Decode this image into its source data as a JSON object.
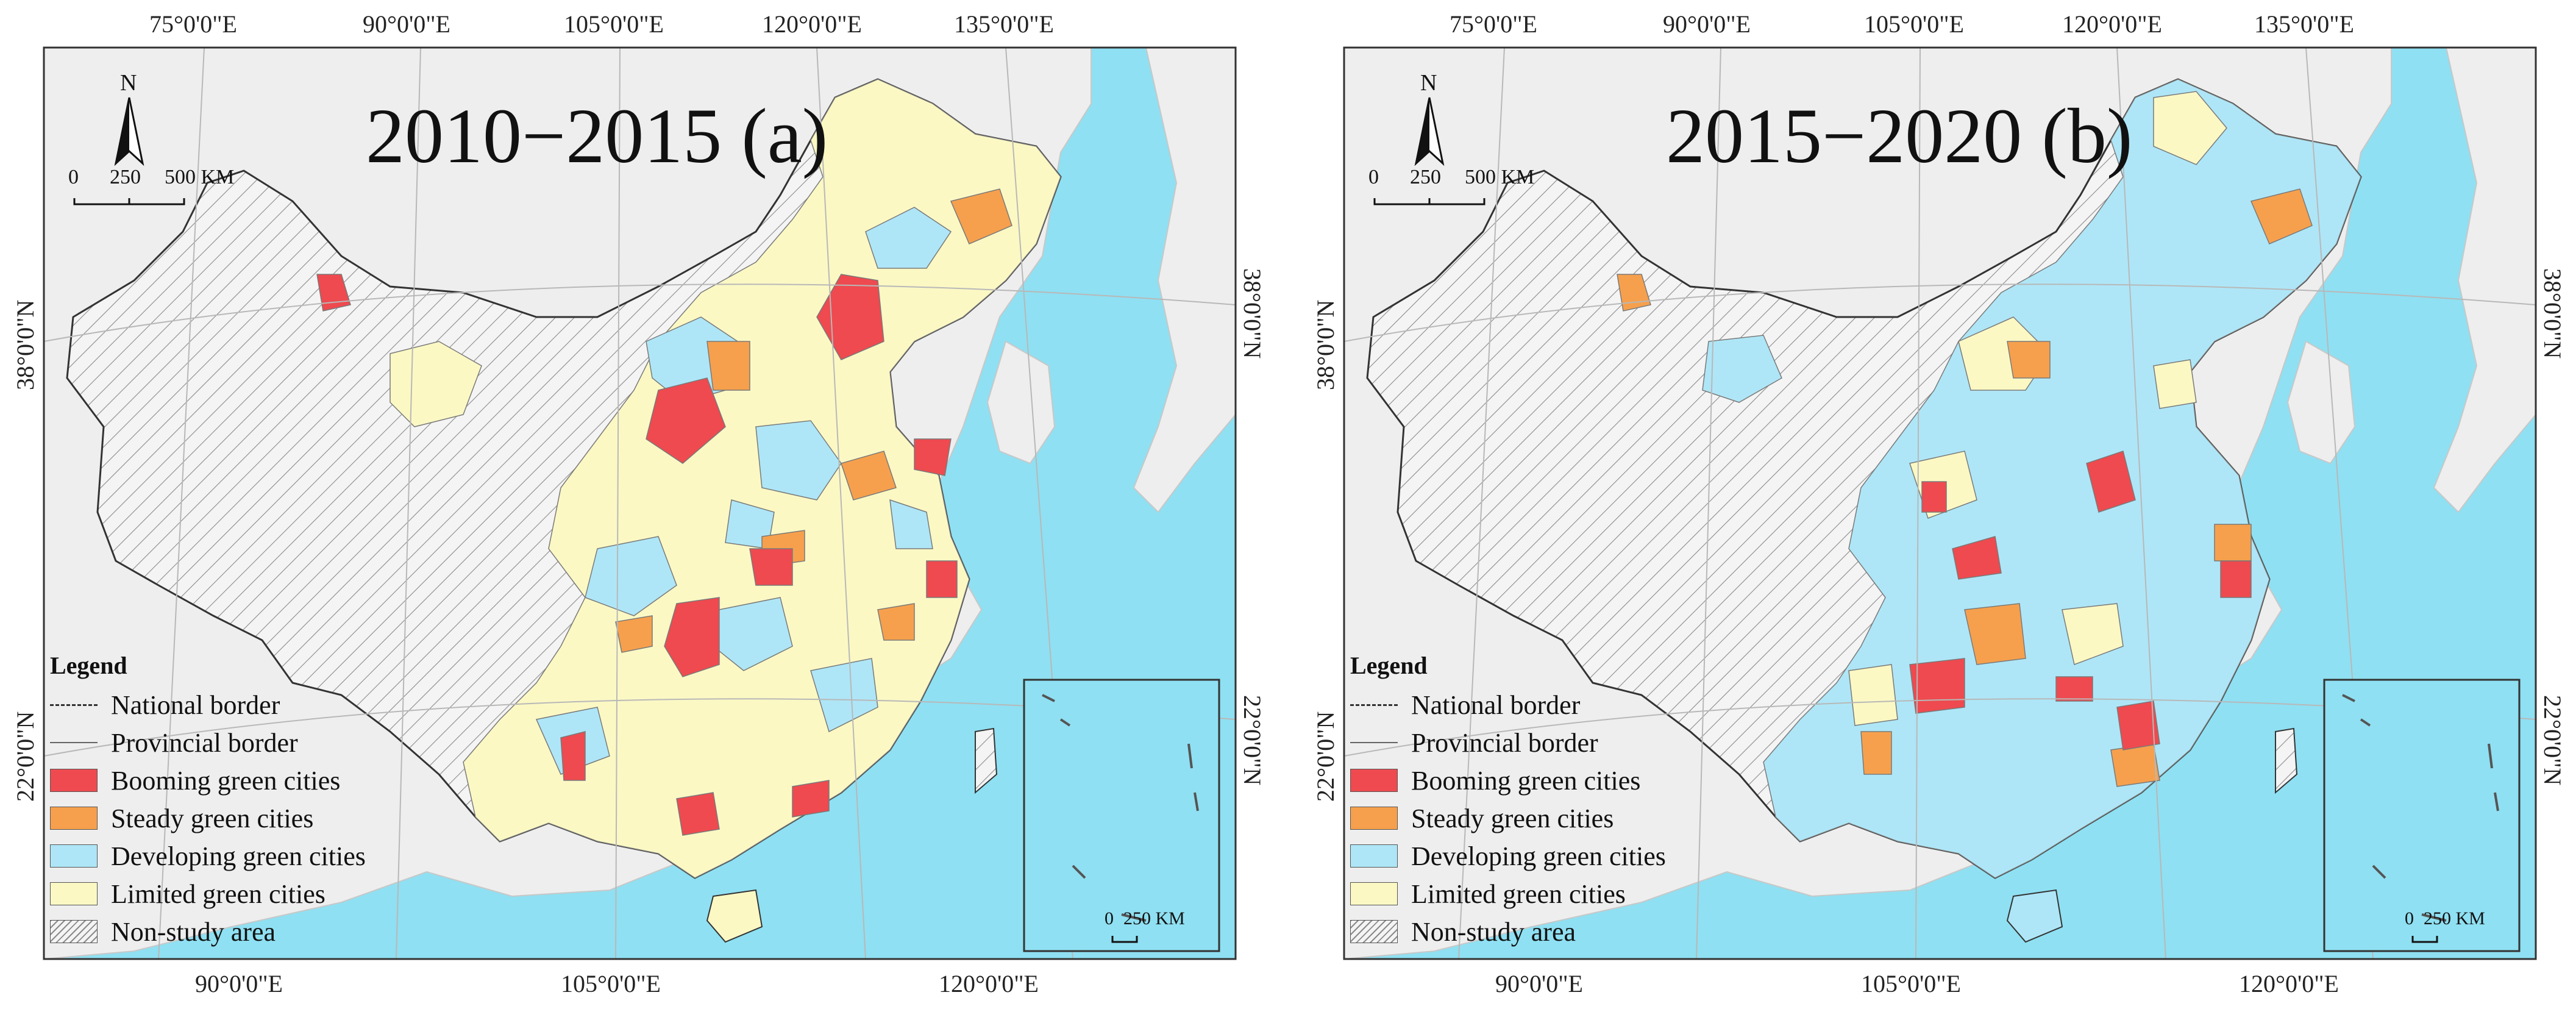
{
  "colors": {
    "sea": "#8fe0f2",
    "land": "#eeeeee",
    "booming": "#ee4a4f",
    "steady": "#f6a04d",
    "developing": "#aee6f7",
    "limited": "#fbf8c4",
    "border": "#555555"
  },
  "coordinates": {
    "top": [
      "75°0'0\"E",
      "90°0'0\"E",
      "105°0'0\"E",
      "120°0'0\"E",
      "135°0'0\"E"
    ],
    "bottom": [
      "90°0'0\"E",
      "105°0'0\"E",
      "120°0'0\"E"
    ],
    "left": [
      "38°0'0\"N",
      "22°0'0\"N"
    ],
    "right": [
      "38°0'0\"N",
      "22°0'0\"N"
    ]
  },
  "north_arrow": {
    "label": "N"
  },
  "scale_bar": {
    "ticks": [
      "0",
      "250",
      "500 KM"
    ]
  },
  "inset_scale": {
    "zero": "0",
    "label": "250 KM"
  },
  "legend": {
    "title": "Legend",
    "items": [
      {
        "label": "National border",
        "symbol": "national-border"
      },
      {
        "label": "Provincial border",
        "symbol": "provincial-border"
      },
      {
        "label": "Booming green cities",
        "symbol": "booming"
      },
      {
        "label": "Steady green cities",
        "symbol": "steady"
      },
      {
        "label": "Developing green cities",
        "symbol": "developing"
      },
      {
        "label": "Limited green cities",
        "symbol": "limited"
      },
      {
        "label": "Non-study area",
        "symbol": "hatch"
      }
    ]
  },
  "panels": [
    {
      "title": "2010−2015 (a)"
    },
    {
      "title": "2015−2020 (b)"
    }
  ]
}
